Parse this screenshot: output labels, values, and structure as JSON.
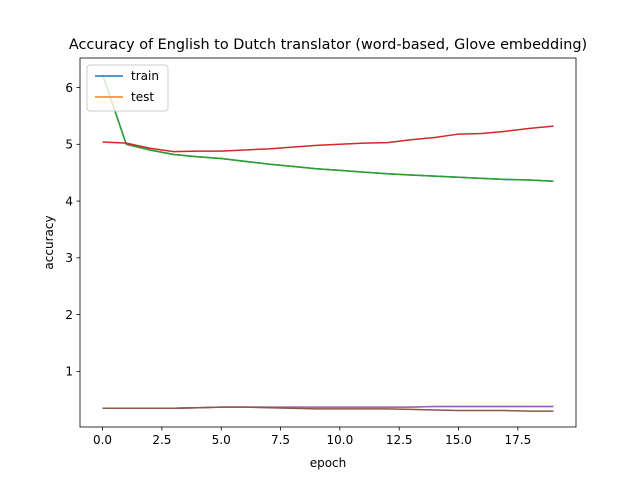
{
  "chart_data": {
    "type": "line",
    "title": "Accuracy of English to Dutch translator (word-based, Glove embedding)",
    "xlabel": "epoch",
    "ylabel": "accuracy",
    "xlim": [
      -0.95,
      19.95
    ],
    "ylim": [
      0.02,
      6.52
    ],
    "xticks": [
      0.0,
      2.5,
      5.0,
      7.5,
      10.0,
      12.5,
      15.0,
      17.5
    ],
    "xtick_labels": [
      "0.0",
      "2.5",
      "5.0",
      "7.5",
      "10.0",
      "12.5",
      "15.0",
      "17.5"
    ],
    "yticks": [
      1,
      2,
      3,
      4,
      5,
      6
    ],
    "ytick_labels": [
      "1",
      "2",
      "3",
      "4",
      "5",
      "6"
    ],
    "grid": false,
    "legend": {
      "placement": "upper-left",
      "entries": [
        "train",
        "test"
      ]
    },
    "x": [
      0,
      1,
      2,
      3,
      4,
      5,
      6,
      7,
      8,
      9,
      10,
      11,
      12,
      13,
      14,
      15,
      16,
      17,
      18,
      19
    ],
    "series": [
      {
        "name": "train",
        "color": "#1f77b4",
        "values": [
          6.23,
          5.0,
          4.9,
          4.82,
          4.78,
          4.75,
          4.7,
          4.65,
          4.61,
          4.57,
          4.54,
          4.51,
          4.48,
          4.46,
          4.44,
          4.42,
          4.4,
          4.38,
          4.37,
          4.35
        ]
      },
      {
        "name": "test",
        "color": "#ff7f0e",
        "values": [
          0.35,
          0.35,
          0.35,
          0.35,
          0.36,
          0.37,
          0.37,
          0.37,
          0.37,
          0.37,
          0.37,
          0.37,
          0.37,
          0.37,
          0.38,
          0.38,
          0.38,
          0.38,
          0.38,
          0.38
        ]
      },
      {
        "color": "#2ca02c",
        "values": [
          6.23,
          5.0,
          4.9,
          4.82,
          4.78,
          4.75,
          4.7,
          4.65,
          4.61,
          4.57,
          4.54,
          4.51,
          4.48,
          4.46,
          4.44,
          4.42,
          4.4,
          4.38,
          4.37,
          4.35
        ]
      },
      {
        "color": "#d62728",
        "values": [
          5.04,
          5.02,
          4.93,
          4.87,
          4.88,
          4.88,
          4.9,
          4.92,
          4.95,
          4.98,
          5.0,
          5.02,
          5.03,
          5.08,
          5.12,
          5.18,
          5.19,
          5.23,
          5.28,
          5.32
        ]
      },
      {
        "color": "#9467bd",
        "values": [
          0.35,
          0.35,
          0.35,
          0.35,
          0.36,
          0.37,
          0.37,
          0.37,
          0.37,
          0.37,
          0.37,
          0.37,
          0.37,
          0.37,
          0.38,
          0.38,
          0.38,
          0.38,
          0.38,
          0.38
        ]
      },
      {
        "color": "#8c564b",
        "values": [
          0.35,
          0.35,
          0.35,
          0.35,
          0.36,
          0.37,
          0.37,
          0.36,
          0.35,
          0.34,
          0.34,
          0.34,
          0.34,
          0.33,
          0.32,
          0.31,
          0.31,
          0.31,
          0.3,
          0.3
        ]
      }
    ]
  }
}
